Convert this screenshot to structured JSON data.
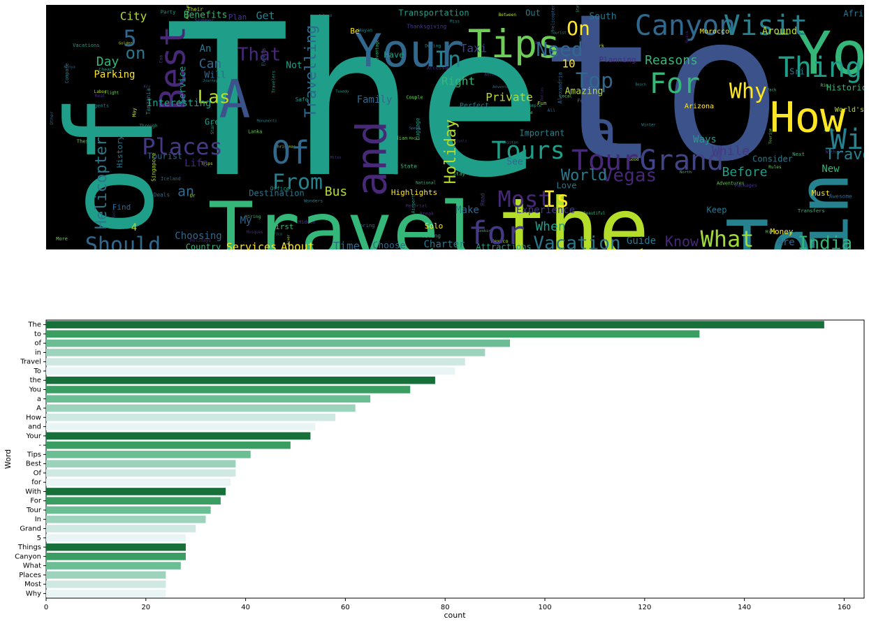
{
  "wordcloud": {
    "words": [
      {
        "t": "The",
        "x": 440,
        "y": 160,
        "s": 300,
        "c": "#1f9e89"
      },
      {
        "t": "to",
        "x": 880,
        "y": 140,
        "s": 290,
        "c": "#3b528b"
      },
      {
        "t": "of",
        "x": 105,
        "y": 230,
        "s": 170,
        "c": "#1f9e89",
        "r": -90
      },
      {
        "t": "Travel",
        "x": 430,
        "y": 330,
        "s": 110,
        "c": "#35b779"
      },
      {
        "t": "the",
        "x": 755,
        "y": 330,
        "s": 120,
        "c": "#b5de2b"
      },
      {
        "t": "To",
        "x": 1035,
        "y": 355,
        "s": 105,
        "c": "#26828e"
      },
      {
        "t": "in",
        "x": 1120,
        "y": 300,
        "s": 100,
        "c": "#26828e",
        "r": -90
      },
      {
        "t": "You",
        "x": 1150,
        "y": 75,
        "s": 85,
        "c": "#35b779"
      },
      {
        "t": "A",
        "x": 270,
        "y": 140,
        "s": 75,
        "c": "#3b528b"
      },
      {
        "t": "How",
        "x": 1090,
        "y": 165,
        "s": 60,
        "c": "#fde725"
      },
      {
        "t": "a",
        "x": 795,
        "y": 185,
        "s": 75,
        "c": "#3b528b"
      },
      {
        "t": "and",
        "x": 470,
        "y": 220,
        "s": 60,
        "c": "#482878",
        "r": -90
      },
      {
        "t": "Your",
        "x": 520,
        "y": 70,
        "s": 65,
        "c": "#31688e"
      },
      {
        "t": "Tips",
        "x": 670,
        "y": 60,
        "s": 55,
        "c": "#6ece58"
      },
      {
        "t": "Canyon",
        "x": 915,
        "y": 32,
        "s": 40,
        "c": "#31688e"
      },
      {
        "t": "Visit",
        "x": 1030,
        "y": 32,
        "s": 40,
        "c": "#26828e"
      },
      {
        "t": "Best",
        "x": 185,
        "y": 90,
        "s": 50,
        "c": "#482878",
        "r": -90
      },
      {
        "t": "Things",
        "x": 1120,
        "y": 92,
        "s": 40,
        "c": "#1f9e89"
      },
      {
        "t": "With",
        "x": 1170,
        "y": 195,
        "s": 40,
        "c": "#26828e"
      },
      {
        "t": "Tour",
        "x": 800,
        "y": 225,
        "s": 40,
        "c": "#482878"
      },
      {
        "t": "Grand",
        "x": 910,
        "y": 225,
        "s": 40,
        "c": "#414487"
      },
      {
        "t": "Tours",
        "x": 690,
        "y": 210,
        "s": 35,
        "c": "#1f9e89"
      },
      {
        "t": "Holiday",
        "x": 580,
        "y": 210,
        "s": 22,
        "c": "#b5de2b",
        "r": -90
      },
      {
        "t": "Places",
        "x": 195,
        "y": 205,
        "s": 32,
        "c": "#443983"
      },
      {
        "t": "Should",
        "x": 110,
        "y": 345,
        "s": 30,
        "c": "#31688e"
      },
      {
        "t": "for",
        "x": 645,
        "y": 330,
        "s": 45,
        "c": "#443983"
      },
      {
        "t": "Most",
        "x": 685,
        "y": 280,
        "s": 32,
        "c": "#482878"
      },
      {
        "t": "Is",
        "x": 730,
        "y": 280,
        "s": 32,
        "c": "#fde725"
      },
      {
        "t": "What",
        "x": 975,
        "y": 337,
        "s": 32,
        "c": "#a0da39"
      },
      {
        "t": "India",
        "x": 1115,
        "y": 342,
        "s": 26,
        "c": "#35b779"
      },
      {
        "t": "Vacation",
        "x": 760,
        "y": 342,
        "s": 26,
        "c": "#2a788e"
      },
      {
        "t": "Of",
        "x": 350,
        "y": 215,
        "s": 45,
        "c": "#31688e"
      },
      {
        "t": "From",
        "x": 360,
        "y": 255,
        "s": 30,
        "c": "#26828e"
      },
      {
        "t": "For",
        "x": 900,
        "y": 115,
        "s": 40,
        "c": "#35b779"
      },
      {
        "t": "Why",
        "x": 1005,
        "y": 125,
        "s": 30,
        "c": "#fde725"
      },
      {
        "t": "Top",
        "x": 785,
        "y": 110,
        "s": 30,
        "c": "#31688e"
      },
      {
        "t": "Need",
        "x": 735,
        "y": 65,
        "s": 28,
        "c": "#31688e"
      },
      {
        "t": "In",
        "x": 575,
        "y": 80,
        "s": 32,
        "c": "#26828e"
      },
      {
        "t": "On",
        "x": 762,
        "y": 35,
        "s": 28,
        "c": "#fde725"
      },
      {
        "t": "Helicopter",
        "x": 80,
        "y": 255,
        "s": 22,
        "c": "#2a788e",
        "r": -90
      },
      {
        "t": "Travelling",
        "x": 380,
        "y": 95,
        "s": 22,
        "c": "#31688e",
        "r": -90
      },
      {
        "t": "Vegas",
        "x": 835,
        "y": 245,
        "s": 26,
        "c": "#482878"
      },
      {
        "t": "World",
        "x": 770,
        "y": 245,
        "s": 22,
        "c": "#2a788e"
      },
      {
        "t": "Las",
        "x": 240,
        "y": 133,
        "s": 26,
        "c": "#b5de2b"
      },
      {
        "t": "That",
        "x": 305,
        "y": 72,
        "s": 26,
        "c": "#482878"
      },
      {
        "t": "5",
        "x": 120,
        "y": 50,
        "s": 32,
        "c": "#31688e"
      },
      {
        "t": "Traveling",
        "x": 1175,
        "y": 215,
        "s": 22,
        "c": "#26828e"
      },
      {
        "t": "Reasons",
        "x": 895,
        "y": 80,
        "s": 18,
        "c": "#35b779"
      },
      {
        "t": "Know",
        "x": 910,
        "y": 340,
        "s": 20,
        "c": "#482878"
      },
      {
        "t": "When",
        "x": 722,
        "y": 318,
        "s": 18,
        "c": "#1f9e89"
      },
      {
        "t": "Trip",
        "x": 1198,
        "y": 342,
        "s": 18,
        "c": "#35b779"
      },
      {
        "t": "Do",
        "x": 1185,
        "y": 300,
        "s": 18,
        "c": "#2a788e"
      },
      {
        "t": "While",
        "x": 980,
        "y": 210,
        "s": 18,
        "c": "#443983"
      },
      {
        "t": "Before",
        "x": 1000,
        "y": 240,
        "s": 18,
        "c": "#1f9e89"
      },
      {
        "t": "Bus",
        "x": 415,
        "y": 268,
        "s": 18,
        "c": "#b5de2b"
      },
      {
        "t": "an",
        "x": 200,
        "y": 268,
        "s": 20,
        "c": "#31688e"
      },
      {
        "t": "Day",
        "x": 88,
        "y": 82,
        "s": 18,
        "c": "#35b779"
      },
      {
        "t": "on",
        "x": 128,
        "y": 70,
        "s": 24,
        "c": "#2a788e"
      },
      {
        "t": "City",
        "x": 125,
        "y": 17,
        "s": 16,
        "c": "#b5de2b"
      },
      {
        "t": "Can",
        "x": 235,
        "y": 85,
        "s": 18,
        "c": "#31688e"
      },
      {
        "t": "Private",
        "x": 663,
        "y": 133,
        "s": 16,
        "c": "#b5de2b"
      },
      {
        "t": "Right",
        "x": 590,
        "y": 110,
        "s": 16,
        "c": "#35b779"
      },
      {
        "t": "Amazing",
        "x": 770,
        "y": 124,
        "s": 13,
        "c": "#b5de2b"
      },
      {
        "t": "Experience",
        "x": 715,
        "y": 294,
        "s": 14,
        "c": "#443983"
      },
      {
        "t": "Make",
        "x": 603,
        "y": 294,
        "s": 14,
        "c": "#31688e"
      },
      {
        "t": "Highlights",
        "x": 527,
        "y": 269,
        "s": 11,
        "c": "#fde725"
      },
      {
        "t": "Attractions",
        "x": 655,
        "y": 347,
        "s": 12,
        "c": "#1f9e89"
      },
      {
        "t": "Charter",
        "x": 570,
        "y": 343,
        "s": 14,
        "c": "#2a788e"
      },
      {
        "t": "Choose",
        "x": 491,
        "y": 345,
        "s": 13,
        "c": "#31688e"
      },
      {
        "t": "Time",
        "x": 430,
        "y": 346,
        "s": 16,
        "c": "#31688e"
      },
      {
        "t": "About",
        "x": 360,
        "y": 347,
        "s": 16,
        "c": "#fde725"
      },
      {
        "t": "Services",
        "x": 294,
        "y": 347,
        "s": 15,
        "c": "#fde725"
      },
      {
        "t": "Country",
        "x": 225,
        "y": 347,
        "s": 12,
        "c": "#35b779"
      },
      {
        "t": "Choosing",
        "x": 218,
        "y": 331,
        "s": 14,
        "c": "#31688e"
      },
      {
        "t": "Family",
        "x": 470,
        "y": 136,
        "s": 14,
        "c": "#31688e"
      },
      {
        "t": "Interesting",
        "x": 190,
        "y": 141,
        "s": 14,
        "c": "#1f9e89"
      },
      {
        "t": "Parking",
        "x": 98,
        "y": 100,
        "s": 14,
        "c": "#fde725"
      },
      {
        "t": "Transportation",
        "x": 555,
        "y": 12,
        "s": 12,
        "c": "#1f9e89"
      },
      {
        "t": "Benefits",
        "x": 228,
        "y": 15,
        "s": 13,
        "c": "#35b779"
      },
      {
        "t": "Get",
        "x": 314,
        "y": 16,
        "s": 15,
        "c": "#26828e"
      },
      {
        "t": "Plan",
        "x": 274,
        "y": 18,
        "s": 11,
        "c": "#443983"
      },
      {
        "t": "South",
        "x": 797,
        "y": 17,
        "s": 13,
        "c": "#2a788e"
      },
      {
        "t": "Out",
        "x": 697,
        "y": 12,
        "s": 12,
        "c": "#26828e"
      },
      {
        "t": "Africa",
        "x": 1163,
        "y": 13,
        "s": 12,
        "c": "#2a788e"
      },
      {
        "t": "Around",
        "x": 1050,
        "y": 38,
        "s": 14,
        "c": "#b5de2b"
      },
      {
        "t": "Morocco",
        "x": 957,
        "y": 38,
        "s": 10,
        "c": "#fde725"
      },
      {
        "t": "Historical",
        "x": 1153,
        "y": 119,
        "s": 12,
        "c": "#35b779"
      },
      {
        "t": "Ways",
        "x": 943,
        "y": 193,
        "s": 14,
        "c": "#1f9e89"
      },
      {
        "t": "Important",
        "x": 710,
        "y": 184,
        "s": 12,
        "c": "#26828e"
      },
      {
        "t": "Guide",
        "x": 852,
        "y": 338,
        "s": 14,
        "c": "#2a788e"
      },
      {
        "t": "Love",
        "x": 745,
        "y": 259,
        "s": 12,
        "c": "#2a788e"
      },
      {
        "t": "Money",
        "x": 1053,
        "y": 325,
        "s": 11,
        "c": "#fde725"
      },
      {
        "t": "Keep",
        "x": 960,
        "y": 294,
        "s": 12,
        "c": "#2a788e"
      },
      {
        "t": "Are",
        "x": 1059,
        "y": 340,
        "s": 14,
        "c": "#31688e"
      },
      {
        "t": "New",
        "x": 1123,
        "y": 235,
        "s": 14,
        "c": "#35b779"
      },
      {
        "t": "Must",
        "x": 1109,
        "y": 270,
        "s": 11,
        "c": "#fde725"
      },
      {
        "t": "Kids",
        "x": 1186,
        "y": 256,
        "s": 11,
        "c": "#b5de2b"
      },
      {
        "t": "Consider",
        "x": 1040,
        "y": 221,
        "s": 12,
        "c": "#2a788e"
      },
      {
        "t": "Taxi",
        "x": 612,
        "y": 63,
        "s": 16,
        "c": "#414487"
      },
      {
        "t": "10",
        "x": 748,
        "y": 85,
        "s": 16,
        "c": "#fde725"
      },
      {
        "t": "Be",
        "x": 442,
        "y": 38,
        "s": 11,
        "c": "#fde725"
      },
      {
        "t": "Have",
        "x": 498,
        "y": 72,
        "s": 12,
        "c": "#1f9e89"
      },
      {
        "t": "Not",
        "x": 355,
        "y": 87,
        "s": 13,
        "c": "#1f9e89"
      },
      {
        "t": "An",
        "x": 228,
        "y": 63,
        "s": 14,
        "c": "#2a788e"
      },
      {
        "t": "Will",
        "x": 242,
        "y": 101,
        "s": 13,
        "c": "#31688e"
      },
      {
        "t": "Service",
        "x": 196,
        "y": 115,
        "s": 13,
        "c": "#1f9e89",
        "r": -90
      },
      {
        "t": "Great",
        "x": 245,
        "y": 168,
        "s": 12,
        "c": "#1f9e89"
      },
      {
        "t": "History",
        "x": 106,
        "y": 210,
        "s": 11,
        "c": "#2a788e",
        "r": -90
      },
      {
        "t": "Tourist",
        "x": 170,
        "y": 217,
        "s": 12,
        "c": "#31688e"
      },
      {
        "t": "Life",
        "x": 215,
        "y": 227,
        "s": 14,
        "c": "#482878"
      },
      {
        "t": "Destination",
        "x": 330,
        "y": 270,
        "s": 12,
        "c": "#2a788e"
      },
      {
        "t": "My",
        "x": 286,
        "y": 309,
        "s": 14,
        "c": "#31688e"
      },
      {
        "t": "First",
        "x": 338,
        "y": 318,
        "s": 11,
        "c": "#35b779"
      },
      {
        "t": "Solo",
        "x": 555,
        "y": 317,
        "s": 11,
        "c": "#fde725"
      },
      {
        "t": "4",
        "x": 126,
        "y": 319,
        "s": 14,
        "c": "#b5de2b"
      },
      {
        "t": "Find",
        "x": 108,
        "y": 290,
        "s": 11,
        "c": "#31688e"
      },
      {
        "t": "Perfect",
        "x": 613,
        "y": 144,
        "s": 10,
        "c": "#2a788e"
      },
      {
        "t": "See",
        "x": 671,
        "y": 225,
        "s": 13,
        "c": "#31688e"
      },
      {
        "t": "Planning",
        "x": 818,
        "y": 79,
        "s": 11,
        "c": "#482878"
      },
      {
        "t": "World's",
        "x": 1150,
        "y": 150,
        "s": 10,
        "c": "#b5de2b"
      },
      {
        "t": "Sri",
        "x": 1075,
        "y": 96,
        "s": 12,
        "c": "#2a788e"
      },
      {
        "t": "Arizona",
        "x": 935,
        "y": 145,
        "s": 10,
        "c": "#fde725"
      }
    ],
    "small_words": [
      "Festivals",
      "Spend",
      "Temple",
      "Visa",
      "Park",
      "Summer",
      "Tanzania",
      "Indian",
      "Holidays",
      "Adventure",
      "Tuxedo",
      "Hiring",
      "Fun",
      "Cab",
      "Agents",
      "Rim",
      "Memorial",
      "Events",
      "Office",
      "Transfers",
      "Between",
      "Live",
      "America",
      "Food",
      "Break",
      "Deals",
      "Vacations",
      "Beautiful",
      "Airplane",
      "Road",
      "Miss",
      "Flight",
      "Quick",
      "Helicopters",
      "Land",
      "National",
      "Good",
      "Going",
      "Journey",
      "Couple",
      "Dream",
      "Help",
      "Outing",
      "Stay",
      "Mexico",
      "Thanksgiving",
      "Follow",
      "Better",
      "Real",
      "Long",
      "Start",
      "Alone",
      "Trips",
      "Hidden",
      "Traveler",
      "Tourism",
      "Lighthouse",
      "Island",
      "Luggage",
      "Advantages",
      "Singapore",
      "Abroad",
      "Winter",
      "Hire",
      "Dubai",
      "Iceland",
      "Travelers",
      "Next",
      "Christmas",
      "Without",
      "Pakistan",
      "Adventures",
      "Dallas",
      "Spring",
      "Airport",
      "Pack",
      "Labor",
      "Peace",
      "During",
      "Lanka",
      "Here's",
      "Other",
      "Tourist",
      "State",
      "Their",
      "Packages",
      "Compare",
      "Local",
      "Car",
      "Kenya",
      "Cheap",
      "Booking",
      "Golden",
      "Key",
      "Wonders",
      "Rules",
      "Accessories",
      "All",
      "Through",
      "North",
      "May",
      "London",
      "Beach",
      "Hacks",
      "Home",
      "Awesome",
      "Safe",
      "Now",
      "Or",
      "Miles",
      "Wayan",
      "More",
      "Mosques",
      "Alexandria",
      "Party",
      "States",
      "River",
      "Egypt",
      "Monuments",
      "These"
    ],
    "small_colors": [
      "#482878",
      "#31688e",
      "#1f9e89",
      "#35b779",
      "#b5de2b",
      "#443983",
      "#26828e",
      "#6ece58"
    ]
  },
  "chart_data": {
    "type": "bar",
    "orientation": "horizontal",
    "xlabel": "count",
    "ylabel": "Word",
    "xlim": [
      0,
      164
    ],
    "xticks": [
      0,
      20,
      40,
      60,
      80,
      100,
      120,
      140,
      160
    ],
    "categories": [
      "The",
      "to",
      "of",
      "in",
      "Travel",
      "To",
      "the",
      "You",
      "a",
      "A",
      "How",
      "and",
      "Your",
      "-",
      "Tips",
      "Best",
      "Of",
      "for",
      "With",
      "For",
      "Tour",
      "In",
      "Grand",
      "5",
      "Things",
      "Canyon",
      "What",
      "Places",
      "Most",
      "Why"
    ],
    "values": [
      156,
      131,
      93,
      88,
      84,
      82,
      78,
      73,
      65,
      62,
      58,
      54,
      53,
      49,
      41,
      38,
      38,
      37,
      36,
      35,
      33,
      32,
      30,
      28,
      28,
      28,
      27,
      24,
      24,
      24
    ],
    "palette": [
      "#17703a",
      "#3a9e62",
      "#6bbd93",
      "#9dd3bd",
      "#cfe9e2",
      "#e8f5f4"
    ],
    "grid": false
  }
}
